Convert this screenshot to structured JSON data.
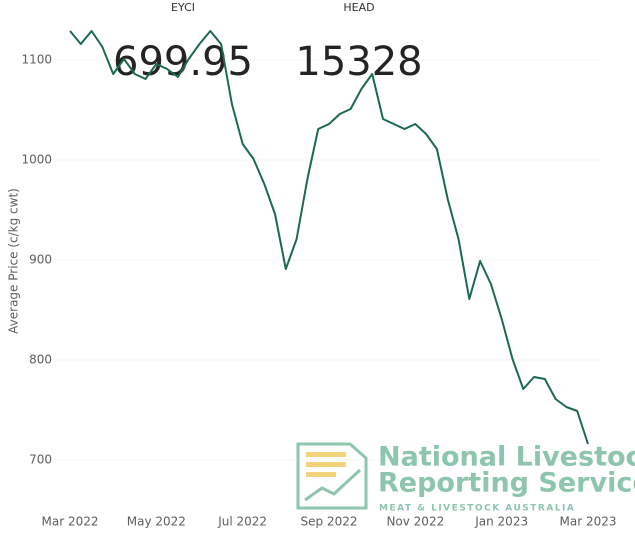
{
  "chart_data": {
    "type": "line",
    "y_label": "Average Price (c/kg cwt)",
    "categories": [
      "Mar 2022",
      null,
      null,
      null,
      null,
      null,
      null,
      null,
      "May 2022",
      null,
      null,
      null,
      null,
      null,
      null,
      null,
      "Jul 2022",
      null,
      null,
      null,
      null,
      null,
      null,
      null,
      "Sep 2022",
      null,
      null,
      null,
      null,
      null,
      null,
      null,
      "Nov 2022",
      null,
      null,
      null,
      null,
      null,
      null,
      null,
      "Jan 2023",
      null,
      null,
      null,
      null,
      null,
      null,
      null,
      "Mar 2023"
    ],
    "values": [
      1129,
      1116,
      1129,
      1113,
      1086,
      1101,
      1086,
      1081,
      1096,
      1091,
      1083,
      1101,
      1116,
      1129,
      1116,
      1056,
      1016,
      1001,
      976,
      946,
      891,
      921,
      981,
      1031,
      1036,
      1046,
      1051,
      1071,
      1086,
      1041,
      1036,
      1031,
      1036,
      1026,
      1011,
      961,
      921,
      861,
      899,
      876,
      841,
      801,
      771,
      783,
      781,
      761,
      753,
      749,
      716
    ],
    "color": "#1b6b4b",
    "ylim": [
      660,
      1130
    ],
    "yticks": [
      700,
      800,
      900,
      1000,
      1100
    ],
    "grid": true
  },
  "cards": [
    {
      "label": "EYCI",
      "value": 699.95
    },
    {
      "label": "HEAD",
      "value": 15328
    }
  ],
  "logo": {
    "line1": "National Livestock",
    "line2": "Reporting Service",
    "tagline": "MEAT & LIVESTOCK AUSTRALIA"
  }
}
